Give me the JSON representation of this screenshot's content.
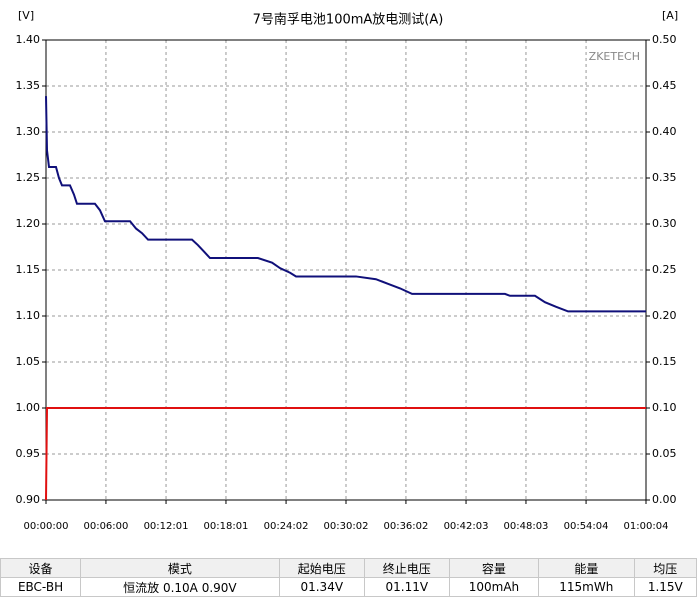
{
  "chart_data": {
    "type": "line",
    "title": "7号南孚电池100mA放电测试(A)",
    "y_label": "[V]",
    "y2_label": "[A]",
    "annotation": "ZKETECH",
    "xlim": [
      0,
      3604
    ],
    "xticks": [
      {
        "value": 0,
        "label": "00:00:00"
      },
      {
        "value": 360,
        "label": "00:06:00"
      },
      {
        "value": 721,
        "label": "00:12:01"
      },
      {
        "value": 1081,
        "label": "00:18:01"
      },
      {
        "value": 1442,
        "label": "00:24:02"
      },
      {
        "value": 1802,
        "label": "00:30:02"
      },
      {
        "value": 2162,
        "label": "00:36:02"
      },
      {
        "value": 2523,
        "label": "00:42:03"
      },
      {
        "value": 2883,
        "label": "00:48:03"
      },
      {
        "value": 3244,
        "label": "00:54:04"
      },
      {
        "value": 3604,
        "label": "01:00:04"
      }
    ],
    "ylim": [
      0.9,
      1.4
    ],
    "yticks": [
      {
        "value": 0.9,
        "label": "0.90"
      },
      0.95,
      {
        "value": 1,
        "label": "1.00"
      },
      1.05,
      {
        "value": 1.1,
        "label": "1.10"
      },
      1.15,
      {
        "value": 1.2,
        "label": "1.20"
      },
      1.25,
      {
        "value": 1.3,
        "label": "1.30"
      },
      1.35,
      {
        "value": 1.4,
        "label": "1.40"
      }
    ],
    "y2lim": [
      0,
      0.5
    ],
    "y2ticks": [
      {
        "value": 0,
        "label": "0.00"
      },
      0.05,
      {
        "value": 0.1,
        "label": "0.10"
      },
      0.15,
      {
        "value": 0.2,
        "label": "0.20"
      },
      0.25,
      {
        "value": 0.3,
        "label": "0.30"
      },
      0.35,
      {
        "value": 0.4,
        "label": "0.40"
      },
      0.45,
      {
        "value": 0.5,
        "label": "0.50"
      }
    ],
    "grid": true,
    "series": [
      {
        "color": "#10107a",
        "x": [
          0,
          6,
          18,
          60,
          78,
          96,
          144,
          168,
          186,
          294,
          324,
          354,
          505,
          541,
          577,
          613,
          877,
          913,
          949,
          985,
          1273,
          1358,
          1406,
          1466,
          1502,
          1862,
          1982,
          2054,
          2127,
          2199,
          2757,
          2787,
          2937,
          2997,
          3064,
          3136,
          3604
        ],
        "values": [
          1.339,
          1.28,
          1.262,
          1.262,
          1.25,
          1.242,
          1.242,
          1.232,
          1.222,
          1.222,
          1.215,
          1.203,
          1.203,
          1.195,
          1.19,
          1.183,
          1.183,
          1.177,
          1.17,
          1.163,
          1.163,
          1.158,
          1.152,
          1.147,
          1.143,
          1.143,
          1.14,
          1.135,
          1.13,
          1.124,
          1.124,
          1.122,
          1.122,
          1.115,
          1.11,
          1.105,
          1.105
        ]
      },
      {
        "color": "#e01010",
        "axis": "y2",
        "x": [
          0,
          6,
          3604
        ],
        "values": [
          0,
          0.1,
          0.1
        ]
      }
    ]
  },
  "table": {
    "headers": [
      "设备",
      "模式",
      "起始电压",
      "终止电压",
      "容量",
      "能量",
      "均压"
    ],
    "rows": [
      [
        "EBC-BH",
        "恒流放 0.10A 0.90V",
        "01.34V",
        "01.11V",
        "100mAh",
        "115mWh",
        "1.15V"
      ]
    ]
  }
}
